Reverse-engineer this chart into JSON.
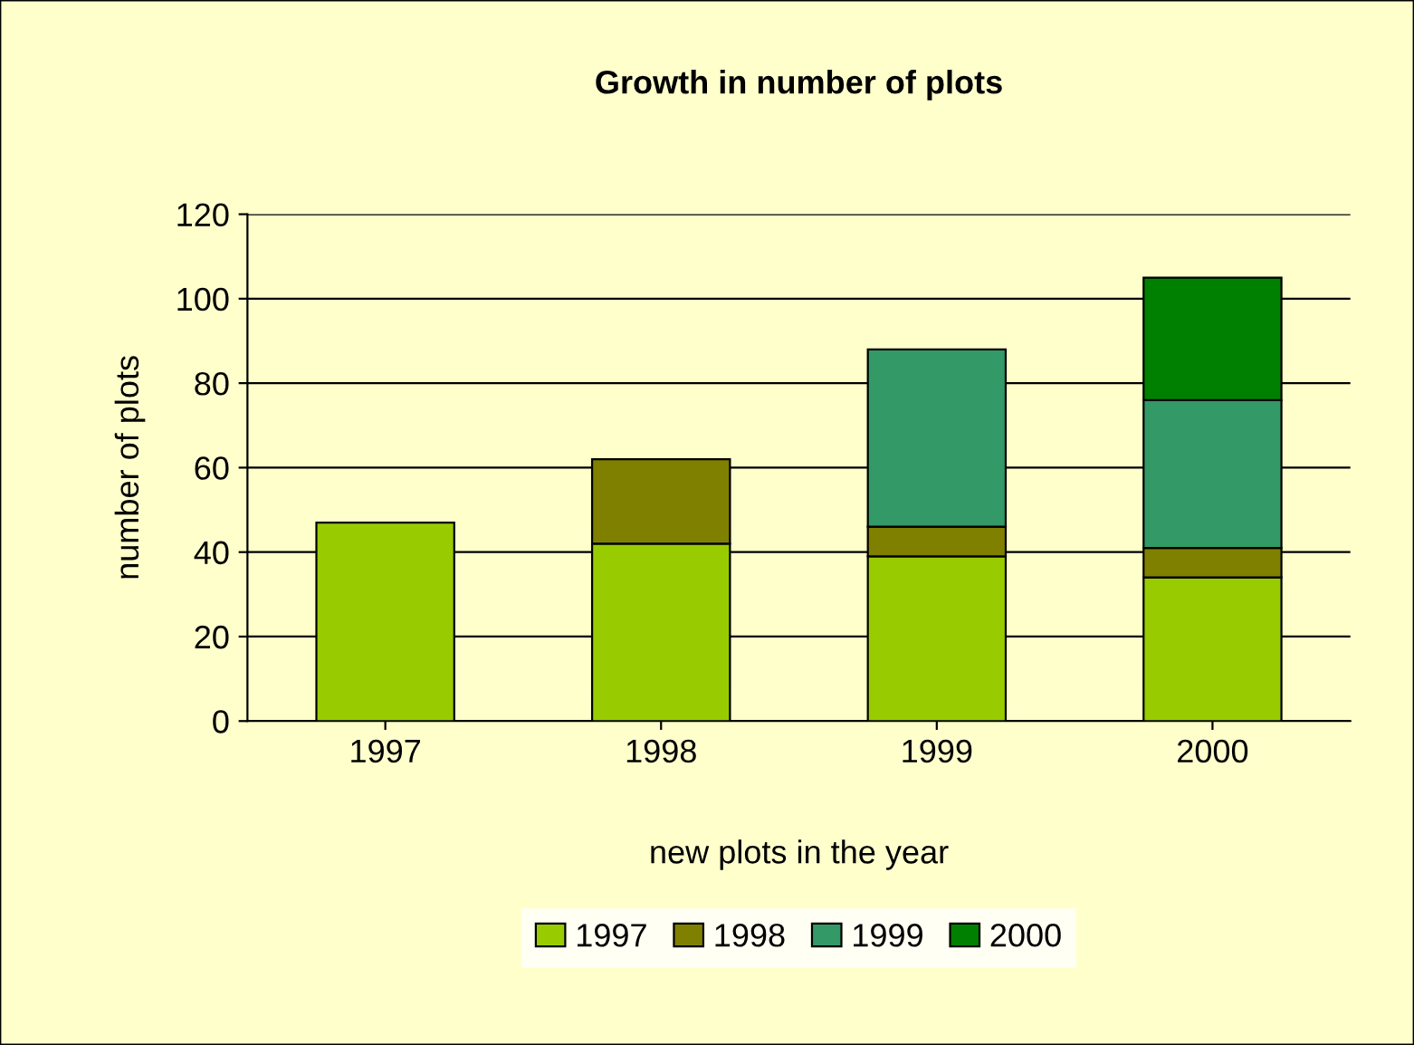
{
  "chart_data": {
    "type": "bar",
    "stacked": true,
    "title": "Growth in number of plots",
    "xlabel": "new plots in the year",
    "ylabel": "number of plots",
    "categories": [
      "1997",
      "1998",
      "1999",
      "2000"
    ],
    "series": [
      {
        "name": "1997",
        "color": "#99cc00",
        "values": [
          47,
          42,
          39,
          34
        ]
      },
      {
        "name": "1998",
        "color": "#808000",
        "values": [
          null,
          20,
          7,
          7
        ]
      },
      {
        "name": "1999",
        "color": "#339966",
        "values": [
          null,
          null,
          42,
          35
        ]
      },
      {
        "name": "2000",
        "color": "#008000",
        "values": [
          null,
          null,
          null,
          29
        ]
      }
    ],
    "ylim": [
      0,
      120
    ],
    "yticks": [
      0,
      20,
      40,
      60,
      80,
      100,
      120
    ],
    "grid": "y",
    "legend": "bottom"
  }
}
